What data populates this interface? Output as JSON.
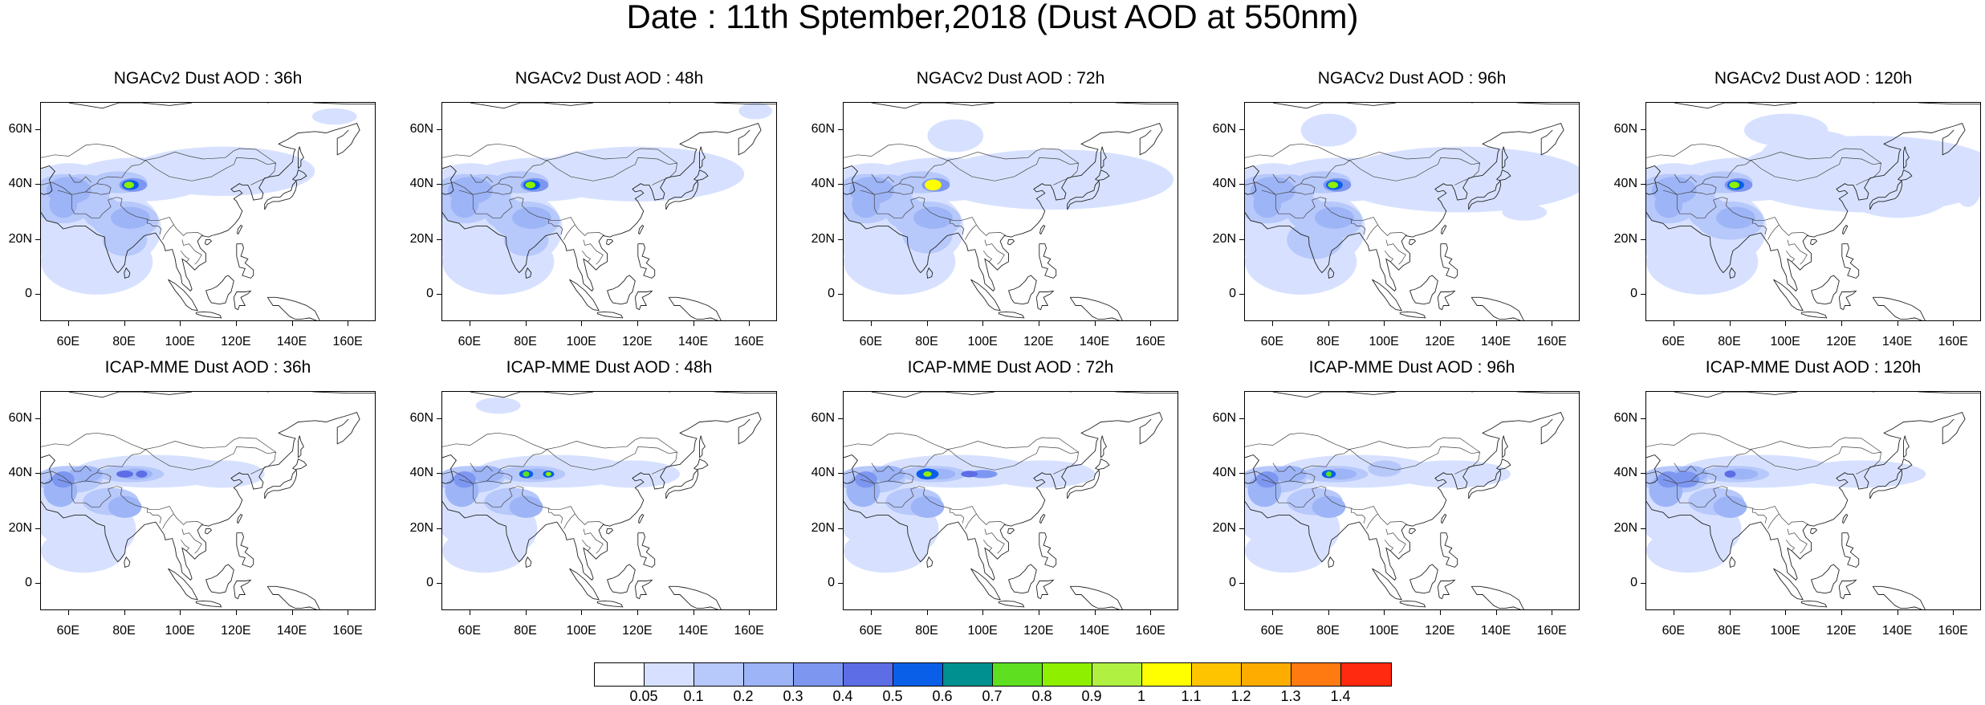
{
  "title": "Date : 11th Sptember,2018 (Dust AOD at 550nm)",
  "panels": [
    {
      "title": "NGACv2 Dust AOD : 36h"
    },
    {
      "title": "NGACv2 Dust AOD : 48h"
    },
    {
      "title": "NGACv2 Dust AOD : 72h"
    },
    {
      "title": "NGACv2 Dust AOD : 96h"
    },
    {
      "title": "NGACv2 Dust AOD : 120h"
    },
    {
      "title": "ICAP-MME Dust AOD : 36h"
    },
    {
      "title": "ICAP-MME Dust AOD : 48h"
    },
    {
      "title": "ICAP-MME Dust AOD : 72h"
    },
    {
      "title": "ICAP-MME Dust AOD : 96h"
    },
    {
      "title": "ICAP-MME Dust AOD : 120h"
    }
  ],
  "lat_labels": [
    "60N",
    "40N",
    "20N",
    "0"
  ],
  "lon_labels": [
    "60E",
    "80E",
    "100E",
    "120E",
    "140E",
    "160E"
  ],
  "colorbar": {
    "colors": [
      "#ffffff",
      "#d7e1ff",
      "#b7c8fb",
      "#9db5f7",
      "#7d97f1",
      "#5d6de6",
      "#0a5fe8",
      "#009090",
      "#5ee020",
      "#8ef000",
      "#b0f040",
      "#ffff00",
      "#ffc400",
      "#ffac00",
      "#ff7a10",
      "#ff2a10"
    ],
    "labels": [
      "0.05",
      "0.1",
      "0.2",
      "0.3",
      "0.4",
      "0.5",
      "0.6",
      "0.7",
      "0.8",
      "0.9",
      "1",
      "1.1",
      "1.2",
      "1.3",
      "1.4"
    ]
  }
}
